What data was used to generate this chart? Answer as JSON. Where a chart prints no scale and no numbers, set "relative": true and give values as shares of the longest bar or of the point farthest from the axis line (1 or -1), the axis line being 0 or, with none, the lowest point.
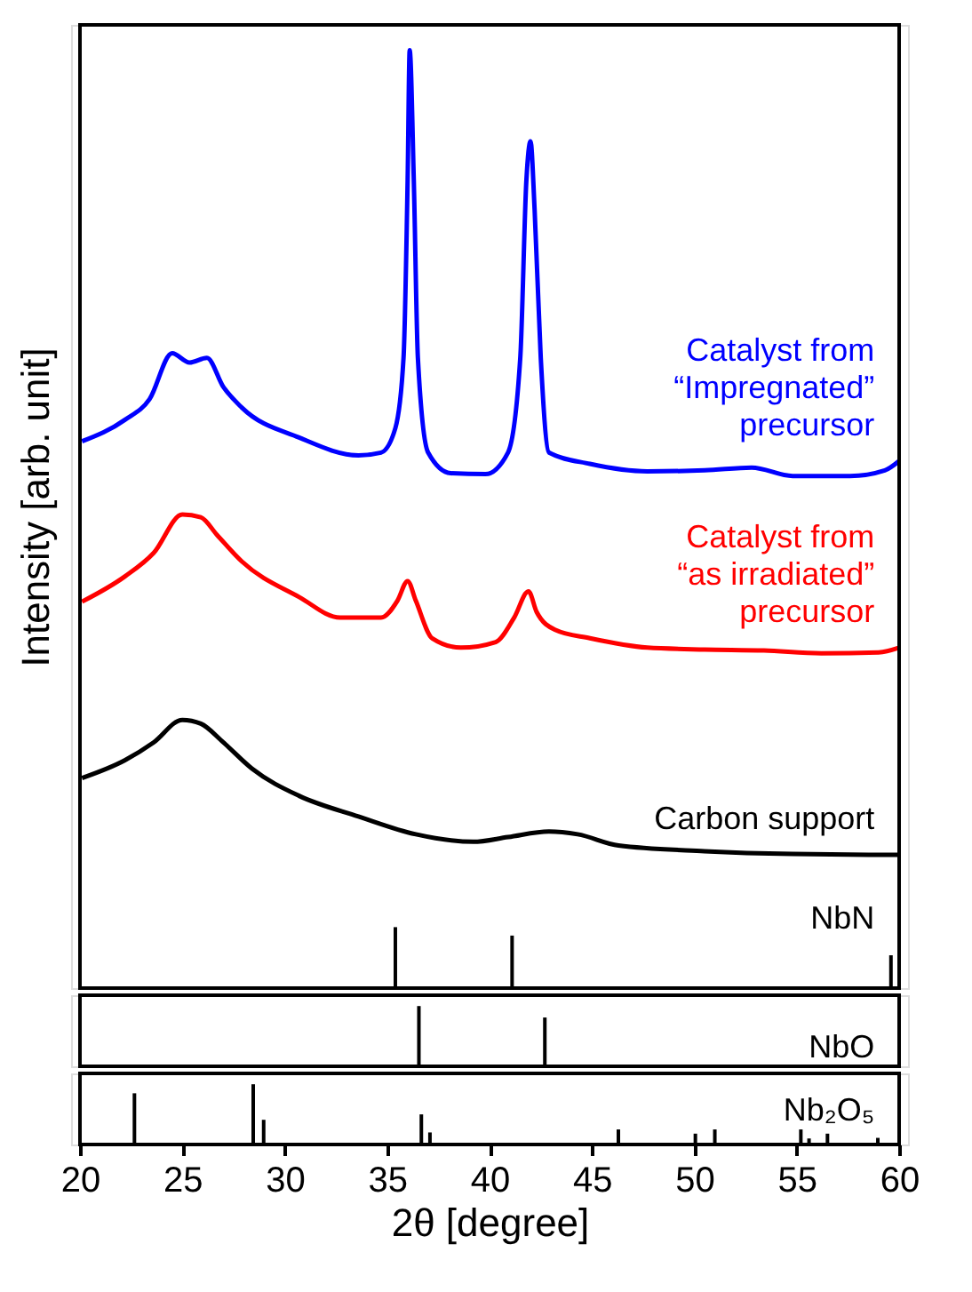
{
  "chart_data": [
    {
      "type": "line",
      "relative": true,
      "xlim": [
        20,
        60
      ],
      "tick_labels": false,
      "ylabel": "Intensity [arb. unit]",
      "grid": false,
      "legend": false,
      "series": [
        {
          "name": "Catalyst from\n“Impregnated”\nprecursor",
          "color": "#0000ff",
          "x": [
            20.1,
            22.2,
            23.4,
            24.5,
            25.35,
            26.2,
            27.0,
            27.9,
            30.7,
            33.6,
            34.7,
            35.4,
            35.8,
            36.0,
            36.1,
            36.3,
            36.5,
            37.0,
            38.1,
            39.8,
            40.9,
            41.5,
            41.8,
            42.0,
            42.2,
            42.5,
            42.9,
            44.9,
            47.7,
            50.5,
            52.8,
            54.8,
            57.6,
            59.3,
            60.0
          ],
          "values": [
            0.583,
            0.606,
            0.628,
            0.677,
            0.667,
            0.672,
            0.641,
            0.619,
            0.587,
            0.568,
            0.571,
            0.597,
            0.672,
            0.862,
            1,
            0.862,
            0.672,
            0.571,
            0.549,
            0.548,
            0.571,
            0.672,
            0.862,
            0.903,
            0.83,
            0.672,
            0.571,
            0.559,
            0.551,
            0.552,
            0.555,
            0.546,
            0.546,
            0.552,
            0.562
          ]
        },
        {
          "name": "Catalyst from\n“as irradiated”\nprecursor",
          "color": "#ff0000",
          "x": [
            20.1,
            22.2,
            23.6,
            25.0,
            25.9,
            26.7,
            27.9,
            30.7,
            32.7,
            34.7,
            35.5,
            36.0,
            36.4,
            37.2,
            38.6,
            40.3,
            41.2,
            41.9,
            42.3,
            43.2,
            44.9,
            47.7,
            50.5,
            53.4,
            56.2,
            59.0,
            60.0
          ],
          "values": [
            0.412,
            0.439,
            0.464,
            0.505,
            0.502,
            0.483,
            0.455,
            0.417,
            0.395,
            0.395,
            0.413,
            0.434,
            0.413,
            0.373,
            0.363,
            0.369,
            0.395,
            0.423,
            0.401,
            0.382,
            0.373,
            0.363,
            0.361,
            0.36,
            0.357,
            0.358,
            0.363
          ]
        },
        {
          "name": "Carbon support",
          "color": "#000000",
          "x": [
            20.1,
            22.2,
            23.6,
            25.0,
            25.9,
            27.0,
            28.4,
            30.7,
            33.6,
            36.4,
            39.2,
            40.9,
            42.9,
            44.3,
            46.3,
            50.5,
            54.8,
            60.0
          ],
          "values": [
            0.224,
            0.243,
            0.262,
            0.286,
            0.282,
            0.262,
            0.234,
            0.205,
            0.183,
            0.164,
            0.156,
            0.161,
            0.167,
            0.164,
            0.152,
            0.146,
            0.143,
            0.142
          ]
        },
        {
          "name": "NbN",
          "type": "bar",
          "color": "#000000",
          "x": [
            35.4,
            41.1,
            59.6
          ],
          "values": [
            0.065,
            0.056,
            0.035
          ]
        }
      ]
    },
    {
      "type": "bar",
      "relative": true,
      "xlim": [
        20,
        60
      ],
      "tick_labels": false,
      "grid": false,
      "legend": false,
      "series": [
        {
          "name": "NbO",
          "color": "#000000",
          "x": [
            36.55,
            42.7
          ],
          "values": [
            1,
            0.81
          ]
        }
      ]
    },
    {
      "type": "bar",
      "relative": true,
      "xlim": [
        20,
        60
      ],
      "xticks": [
        20,
        25,
        30,
        35,
        40,
        45,
        50,
        55,
        60
      ],
      "tick_labels": "x",
      "xlabel": "2θ [degree]",
      "grid": false,
      "legend": false,
      "series": [
        {
          "name": "Nb₂O₅",
          "color": "#000000",
          "x": [
            22.66,
            28.46,
            28.97,
            36.67,
            37.09,
            46.29,
            50.05,
            51.0,
            55.2,
            55.6,
            56.5,
            58.96
          ],
          "values": [
            0.85,
            1,
            0.41,
            0.5,
            0.2,
            0.25,
            0.18,
            0.25,
            0.25,
            0.1,
            0.18,
            0.11
          ]
        }
      ]
    }
  ]
}
